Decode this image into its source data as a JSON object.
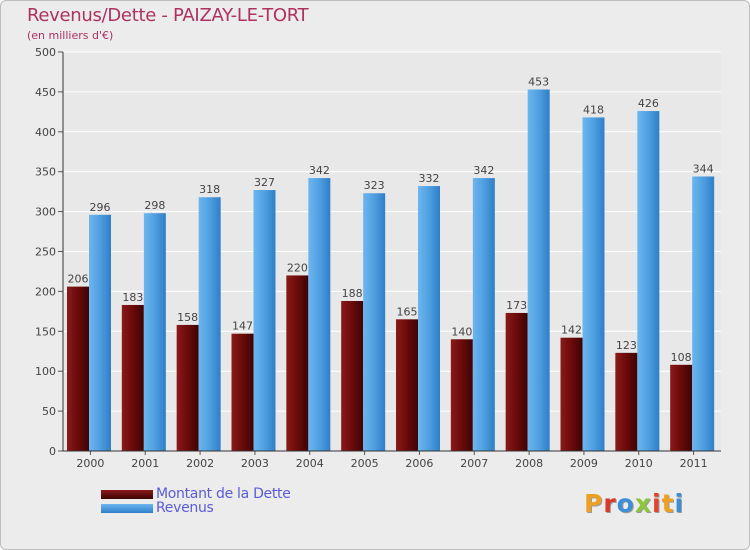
{
  "header": {
    "title": "Revenus/Dette - PAIZAY-LE-TORT",
    "subtitle": "(en milliers d'€)"
  },
  "legend": {
    "items": [
      {
        "label": "Montant de la Dette",
        "color": "#6b0a0a"
      },
      {
        "label": "Revenus",
        "color": "#4f9fe0"
      }
    ]
  },
  "logo": {
    "letters": [
      {
        "ch": "P",
        "color": "#f0a020"
      },
      {
        "ch": "r",
        "color": "#d83a2a"
      },
      {
        "ch": "o",
        "color": "#3a8fd8"
      },
      {
        "ch": "x",
        "color": "#8ac53a"
      },
      {
        "ch": "i",
        "color": "#e0442c"
      },
      {
        "ch": "t",
        "color": "#f0a020"
      },
      {
        "ch": "i",
        "color": "#3a8fd8"
      }
    ]
  },
  "chart_data": {
    "type": "bar",
    "title": "Revenus/Dette - PAIZAY-LE-TORT",
    "subtitle": "(en milliers d'€)",
    "categories": [
      "2000",
      "2001",
      "2002",
      "2003",
      "2004",
      "2005",
      "2006",
      "2007",
      "2008",
      "2009",
      "2010",
      "2011"
    ],
    "series": [
      {
        "name": "Montant de la Dette",
        "color": "#6b0a0a",
        "values": [
          206,
          183,
          158,
          147,
          220,
          188,
          165,
          140,
          173,
          142,
          123,
          108
        ]
      },
      {
        "name": "Revenus",
        "color": "#4f9fe0",
        "values": [
          296,
          298,
          318,
          327,
          342,
          323,
          332,
          342,
          453,
          418,
          426,
          344
        ]
      }
    ],
    "ylim": [
      0,
      500
    ],
    "yticks": [
      0,
      50,
      100,
      150,
      200,
      250,
      300,
      350,
      400,
      450,
      500
    ],
    "grid": true,
    "legend_position": "bottom-left"
  }
}
